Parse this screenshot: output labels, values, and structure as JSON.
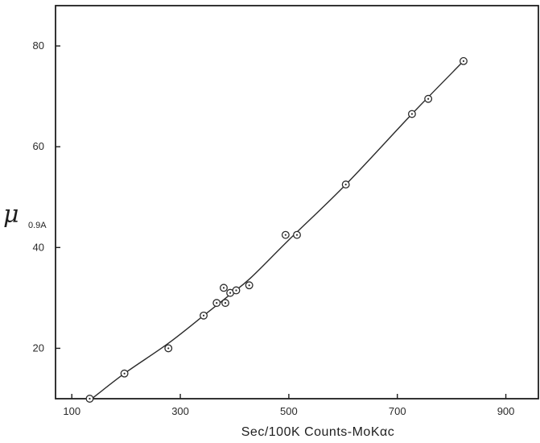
{
  "chart_data": {
    "type": "scatter",
    "title": "",
    "xlabel": "Sec/100K Counts-MoKαc",
    "ylabel": {
      "symbol": "μ",
      "subscript": "0.9A"
    },
    "xlim": [
      70,
      960
    ],
    "ylim": [
      10,
      88
    ],
    "xticks": [
      100,
      300,
      500,
      700,
      900
    ],
    "yticks": [
      20,
      40,
      60,
      80
    ],
    "grid": false,
    "legend": "none",
    "colors": {
      "line": "#2b2b2b",
      "marker": "#2b2b2b",
      "axis": "#1e1e1e"
    },
    "series": [
      {
        "points": [
          [
            133,
            10
          ],
          [
            197,
            15
          ],
          [
            278,
            20
          ],
          [
            343,
            26.5
          ],
          [
            367,
            29
          ],
          [
            380,
            32
          ],
          [
            383,
            29
          ],
          [
            392,
            31
          ],
          [
            403,
            31.5
          ],
          [
            427,
            32.5
          ],
          [
            494,
            42.5
          ],
          [
            515,
            42.5
          ],
          [
            605,
            52.5
          ],
          [
            727,
            66.5
          ],
          [
            757,
            69.5
          ],
          [
            822,
            77
          ]
        ],
        "curve": [
          [
            137,
            10
          ],
          [
            197,
            15
          ],
          [
            278,
            21
          ],
          [
            343,
            26.5
          ],
          [
            390,
            30.5
          ],
          [
            430,
            34
          ],
          [
            500,
            41.5
          ],
          [
            605,
            52.5
          ],
          [
            727,
            66.5
          ],
          [
            822,
            77
          ]
        ]
      }
    ]
  }
}
